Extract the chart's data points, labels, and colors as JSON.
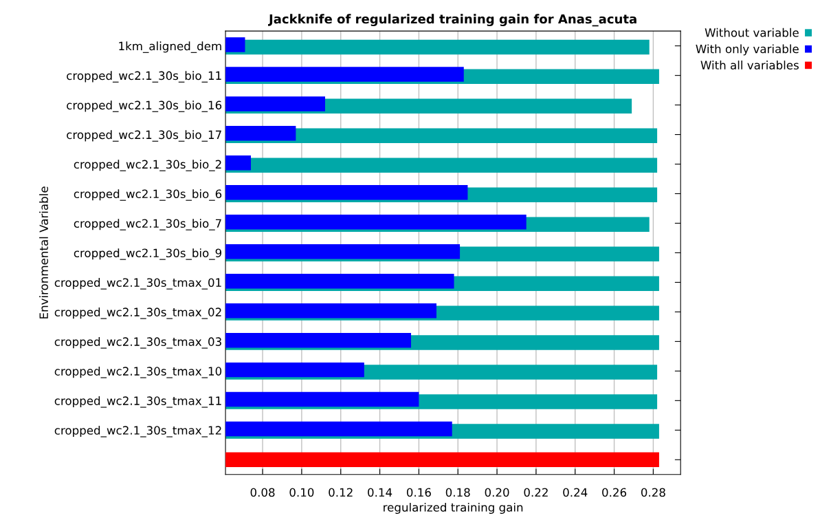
{
  "chart_data": {
    "type": "bar",
    "orientation": "horizontal",
    "title": "Jackknife of regularized training gain for Anas_acuta",
    "xlabel": "regularized training gain",
    "ylabel": "Environmental Variable",
    "categories": [
      "1km_aligned_dem",
      "cropped_wc2.1_30s_bio_11",
      "cropped_wc2.1_30s_bio_16",
      "cropped_wc2.1_30s_bio_17",
      "cropped_wc2.1_30s_bio_2",
      "cropped_wc2.1_30s_bio_6",
      "cropped_wc2.1_30s_bio_7",
      "cropped_wc2.1_30s_bio_9",
      "cropped_wc2.1_30s_tmax_01",
      "cropped_wc2.1_30s_tmax_02",
      "cropped_wc2.1_30s_tmax_03",
      "cropped_wc2.1_30s_tmax_10",
      "cropped_wc2.1_30s_tmax_11",
      "cropped_wc2.1_30s_tmax_12",
      null
    ],
    "series": [
      {
        "name": "Without variable",
        "color": "#00a8a8",
        "values": [
          0.278,
          0.283,
          0.269,
          0.282,
          0.282,
          0.282,
          0.278,
          0.283,
          0.283,
          0.283,
          0.283,
          0.282,
          0.282,
          0.283,
          null
        ]
      },
      {
        "name": "With only variable",
        "color": "#0000ff",
        "values": [
          0.071,
          0.183,
          0.112,
          0.097,
          0.074,
          0.185,
          0.215,
          0.181,
          0.178,
          0.169,
          0.156,
          0.132,
          0.16,
          0.177,
          null
        ]
      },
      {
        "name": "With all variables",
        "color": "#ff0000",
        "values": [
          null,
          null,
          null,
          null,
          null,
          null,
          null,
          null,
          null,
          null,
          null,
          null,
          null,
          null,
          0.283
        ]
      }
    ],
    "xlim": [
      0.061,
      0.294
    ],
    "xticks": [
      0.08,
      {
        "value": 0.1,
        "label": "0.10"
      },
      0.12,
      0.14,
      0.16,
      0.18,
      {
        "value": 0.2,
        "label": "0.20"
      },
      0.22,
      0.24,
      0.26,
      0.28
    ],
    "grid": "x",
    "legend": "top right"
  }
}
